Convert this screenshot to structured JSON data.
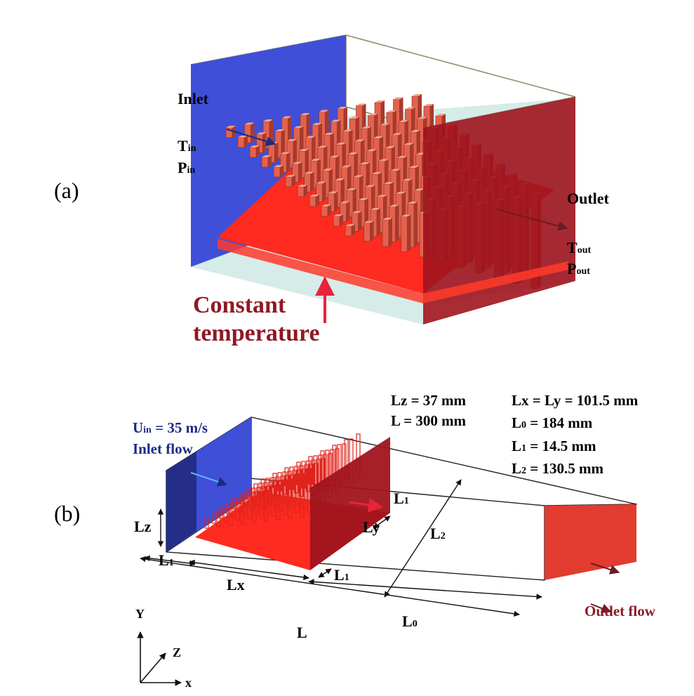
{
  "panel_a": {
    "label": "(a)",
    "inlet": "Inlet",
    "t_in": {
      "base": "T",
      "sub": "in"
    },
    "p_in": {
      "base": "P",
      "sub": "in"
    },
    "outlet": "Outlet",
    "t_out": {
      "base": "T",
      "sub": "out"
    },
    "p_out": {
      "base": "P",
      "sub": "out"
    },
    "constant_line1": "Constant",
    "constant_line2": "temperature"
  },
  "panel_b": {
    "label": "(b)",
    "u_in": {
      "base": "U",
      "sub": "in",
      "rest": " = 35 m/s"
    },
    "inlet_flow": "Inlet flow",
    "outlet_flow": "Outlet flow",
    "lz_val": "Lz = 37 mm",
    "l_val": "L = 300 mm",
    "lxly_val": "Lx = Ly = 101.5 mm",
    "l0_val": {
      "base": "L",
      "sub": "0",
      "rest": " = 184 mm"
    },
    "l1_val": {
      "base": "L",
      "sub": "1",
      "rest": " = 14.5 mm"
    },
    "l2_val": {
      "base": "L",
      "sub": "2",
      "rest": " = 130.5 mm"
    },
    "dim_lz": "Lz",
    "dim_l1": {
      "base": "L",
      "sub": "1"
    },
    "dim_lx": "Lx",
    "dim_ly": "Ly",
    "dim_l2": {
      "base": "L",
      "sub": "2"
    },
    "dim_l": "L",
    "dim_l0": {
      "base": "L",
      "sub": "0"
    },
    "axis_x": "x",
    "axis_y": "Y",
    "axis_z": "Z"
  },
  "colors": {
    "inlet_blue": "#3f4fd8",
    "outlet_red": "#a0141e",
    "plate_red": "#ff2a20",
    "fin_face": "#e2624e",
    "fin_side": "#a83a2c",
    "floor": "#d5ece9",
    "label_blue": "#1c2a86",
    "label_red": "#8e1a24"
  }
}
